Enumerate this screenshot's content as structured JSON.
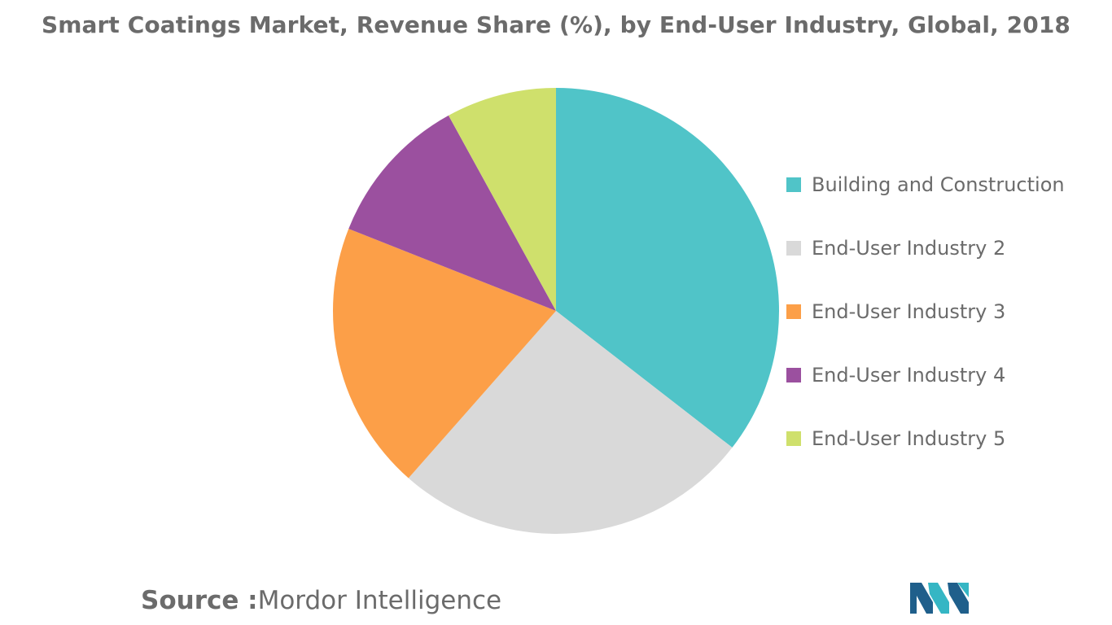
{
  "chart_data": {
    "type": "pie",
    "title": "Smart Coatings Market, Revenue Share (%), by End-User Industry, Global, 2018",
    "unit": "%",
    "start": "12 o'clock, clockwise",
    "slices": [
      {
        "label": "Building and Construction",
        "value": 35.5,
        "color": "#50c4c8"
      },
      {
        "label": "End-User Industry 2",
        "value": 26.0,
        "color": "#d9d9d9"
      },
      {
        "label": "End-User Industry 3",
        "value": 19.5,
        "color": "#fc9f48"
      },
      {
        "label": "End-User Industry 4",
        "value": 11.0,
        "color": "#9b509f"
      },
      {
        "label": "End-User Industry 5",
        "value": 8.0,
        "color": "#cfe06c"
      }
    ],
    "legend": "right"
  },
  "footer": {
    "source_label": "Source :",
    "source_value": "Mordor Intelligence"
  },
  "logo": {
    "name": "mordor-intelligence-logo",
    "colors": [
      "#1f5f8b",
      "#35b6c4"
    ]
  }
}
